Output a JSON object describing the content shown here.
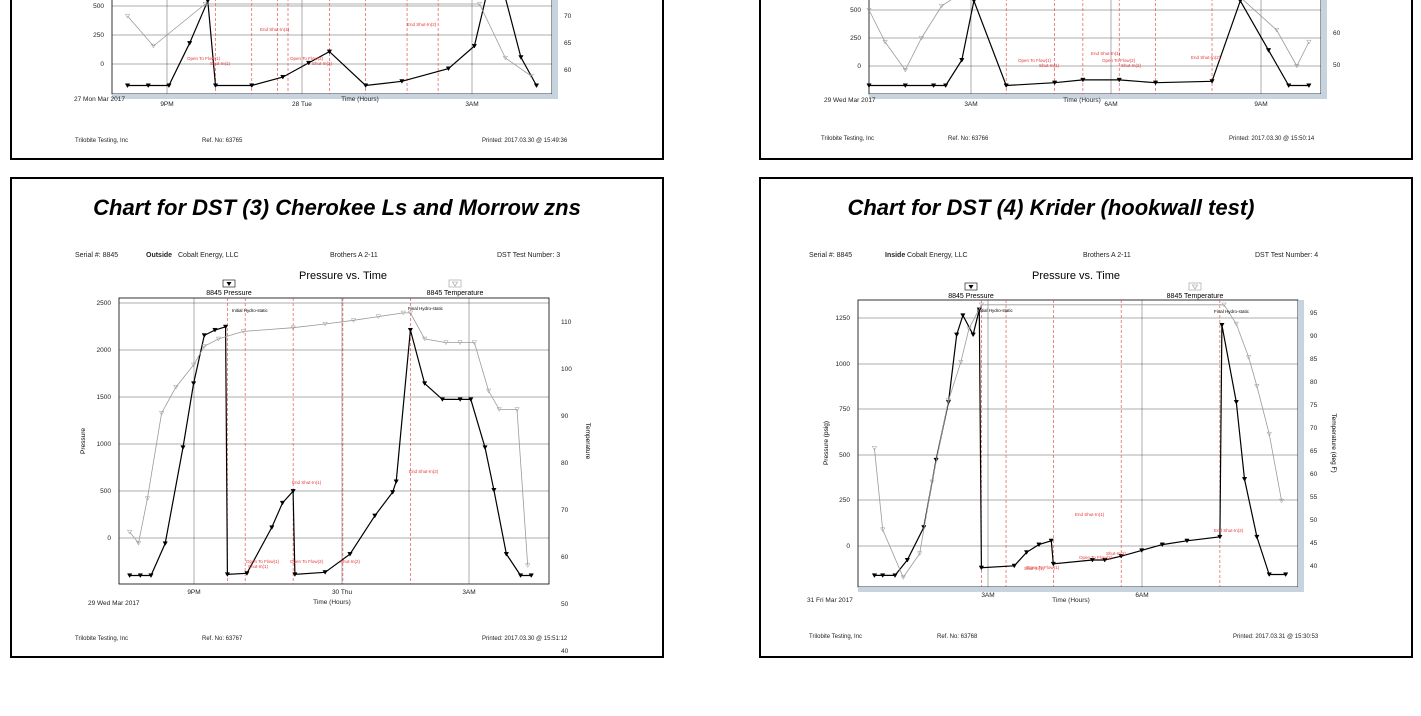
{
  "panels": [
    {
      "chart_title": "",
      "meta": {
        "serial": "",
        "location": "",
        "company": "",
        "well": "",
        "test_number": ""
      },
      "footer": {
        "company": "Trilobite Testing, Inc",
        "ref": "Ref. No:   63765",
        "printed": "Printed: 2017.03.30 @ 15:49:36"
      },
      "x_ticks": [
        "9PM",
        "28 Tue",
        "3AM"
      ],
      "date_label": "27 Mon Mar 2017",
      "x_label": "Time (Hours)",
      "y_ticks": [
        "500",
        "250",
        "0"
      ],
      "y2_ticks": [
        "70",
        "65",
        "60"
      ],
      "annotations": [
        "Open To Flow(1)",
        "Shut-In(1)",
        "End Shut-In(1)",
        "Open To Flow(2)",
        "Shut-In(2)",
        "End Shut-In(2)"
      ]
    },
    {
      "chart_title": "",
      "meta": {
        "serial": "",
        "location": "",
        "company": "",
        "well": "",
        "test_number": ""
      },
      "footer": {
        "company": "Trilobite Testing, Inc",
        "ref": "Ref. No:   63766",
        "printed": "Printed: 2017.03.30 @ 15:50:14"
      },
      "x_ticks": [
        "3AM",
        "6AM",
        "9AM"
      ],
      "date_label": "29 Wed Mar 2017",
      "x_label": "Time (Hours)",
      "y_ticks": [
        "500",
        "250",
        "0"
      ],
      "y2_ticks": [
        "60",
        "50"
      ],
      "annotations": [
        "Open To Flow(1)",
        "Shut-In(1)",
        "End Shut-In(1)",
        "Open To Flow(2)",
        "Shut-In(2)",
        "End Shut-In(2)"
      ]
    },
    {
      "chart_title": "Chart for DST (3) Cherokee Ls and Morrow zns",
      "meta": {
        "serial": "Serial #:  8845",
        "location": "Outside",
        "company": "Cobalt Energy, LLC",
        "well": "Brothers A  2-11",
        "test_number": "DST Test Number: 3"
      },
      "footer": {
        "company": "Trilobite Testing, Inc",
        "ref": "Ref. No:   63767",
        "printed": "Printed: 2017.03.30 @ 15:51:12"
      },
      "plot_title": "Pressure vs. Time",
      "legend": {
        "pressure": "8845 Pressure",
        "temperature": "8845 Temperature"
      },
      "x_ticks": [
        "9PM",
        "30 Thu",
        "3AM"
      ],
      "date_label": "29 Wed Mar 2017",
      "x_label": "Time (Hours)",
      "y_label": "Pressure",
      "y2_label": "Temperature",
      "y_ticks": [
        "2500",
        "2000",
        "1500",
        "1000",
        "500",
        "0"
      ],
      "y2_ticks": [
        "110",
        "100",
        "90",
        "80",
        "70",
        "60",
        "50",
        "40"
      ],
      "annotations": [
        "Initial Hydro-static",
        "Final Hydro-static",
        "End Shut-In(1)",
        "End Shut-In(2)",
        "Open To Flow(1)",
        "Shut-In(1)",
        "Open To Flow(2)",
        "Shut-In(2)"
      ]
    },
    {
      "chart_title": "Chart for DST (4) Krider (hookwall test)",
      "meta": {
        "serial": "Serial #:  8845",
        "location": "Inside",
        "company": "Cobalt Energy, LLC",
        "well": "Brothers A  2-11",
        "test_number": "DST Test Number: 4"
      },
      "footer": {
        "company": "Trilobite Testing, Inc",
        "ref": "Ref. No:   63768",
        "printed": "Printed: 2017.03.31 @ 15:30:53"
      },
      "plot_title": "Pressure vs. Time",
      "legend": {
        "pressure": "8845 Pressure",
        "temperature": "8845 Temperature"
      },
      "x_ticks": [
        "3AM",
        "6AM"
      ],
      "date_label": "31 Fri Mar 2017",
      "x_label": "Time (Hours)",
      "y_label": "Pressure (psig)",
      "y2_label": "Temperature (deg F)",
      "y_ticks": [
        "1250",
        "1000",
        "750",
        "500",
        "250",
        "0"
      ],
      "y2_ticks": [
        "95",
        "90",
        "85",
        "80",
        "75",
        "70",
        "65",
        "60",
        "55",
        "50",
        "45",
        "40"
      ],
      "annotations": [
        "Initial Hydro-static",
        "Final Hydro-static",
        "End Shut-In(1)",
        "End Shut-In(2)",
        "Open To Flow(1)",
        "Shut-In(1)",
        "Open To Flow(2)",
        "Shut-In(2)"
      ]
    }
  ],
  "colors": {
    "pressure": "#000000",
    "temperature": "#9a9a9a",
    "events": "#e23b3b",
    "grid": "#333333"
  },
  "chart_data": [
    {
      "type": "line",
      "x_unit": "hours",
      "series": [
        {
          "name": "",
          "axis": "pressure",
          "x": [
            0.0,
            0.4,
            0.8,
            1.2,
            1.55,
            1.7,
            2.4,
            3.0,
            3.5,
            3.9,
            4.6,
            5.3,
            6.2,
            6.7,
            7.1,
            7.6,
            7.9
          ],
          "y": [
            0,
            0,
            0,
            300,
            600,
            0,
            0,
            60,
            160,
            240,
            0,
            30,
            120,
            280,
            900,
            200,
            0
          ]
        },
        {
          "name": "",
          "axis": "temperature",
          "x": [
            0.0,
            0.5,
            1.5,
            6.8,
            7.3,
            7.8
          ],
          "y": [
            71,
            66,
            73,
            73,
            64,
            61
          ]
        }
      ],
      "xlim": [
        -0.3,
        8.2
      ],
      "ylim": [
        -60,
        620
      ],
      "y2lim": [
        58,
        74
      ],
      "events_x": [
        1.7,
        2.4,
        2.9,
        3.1,
        3.9,
        4.6,
        5.4,
        6.0
      ]
    },
    {
      "type": "line",
      "x_unit": "hours",
      "series": [
        {
          "name": "",
          "axis": "pressure",
          "x": [
            0.0,
            0.9,
            1.6,
            1.9,
            2.3,
            2.6,
            3.4,
            4.6,
            5.3,
            6.2,
            7.1,
            8.5,
            9.2,
            9.9,
            10.4,
            10.9
          ],
          "y": [
            0,
            0,
            0,
            0,
            180,
            600,
            0,
            20,
            40,
            40,
            20,
            30,
            600,
            250,
            0,
            0
          ]
        },
        {
          "name": "",
          "axis": "temperature",
          "x": [
            0.0,
            0.4,
            0.9,
            1.3,
            1.8,
            2.4,
            9.0,
            10.1,
            10.6,
            10.9
          ],
          "y": [
            65,
            57,
            50,
            58,
            66,
            70,
            70,
            60,
            51,
            57
          ]
        }
      ],
      "xlim": [
        0.0,
        11.2
      ],
      "ylim": [
        -60,
        620
      ],
      "y2lim": [
        44,
        68
      ],
      "events_x": [
        3.4,
        4.6,
        5.3,
        6.2,
        7.1,
        8.5
      ]
    },
    {
      "type": "line",
      "title": "Pressure vs. Time",
      "xlabel": "Time (Hours)",
      "ylabel": "Pressure",
      "y2label": "Temperature",
      "x_unit": "hours",
      "series": [
        {
          "name": "8845 Pressure",
          "axis": "pressure",
          "x": [
            0.0,
            0.3,
            0.6,
            1.0,
            1.5,
            1.8,
            2.1,
            2.4,
            2.7,
            2.75,
            3.3,
            4.0,
            4.3,
            4.6,
            4.65,
            5.5,
            6.2,
            6.9,
            7.4,
            7.5,
            7.9,
            8.3,
            8.8,
            9.3,
            9.6,
            10.0,
            10.25,
            10.6,
            11.0,
            11.3
          ],
          "y": [
            0,
            0,
            0,
            300,
            1200,
            1800,
            2250,
            2300,
            2330,
            10,
            20,
            450,
            680,
            790,
            10,
            30,
            200,
            560,
            780,
            880,
            2300,
            1800,
            1650,
            1650,
            1650,
            1200,
            800,
            200,
            0,
            0
          ]
        },
        {
          "name": "8845 Temperature",
          "axis": "temperature",
          "x": [
            0.0,
            0.25,
            0.5,
            0.9,
            1.3,
            1.8,
            2.1,
            2.5,
            3.2,
            4.6,
            5.5,
            6.3,
            7.0,
            7.7,
            7.9,
            8.3,
            8.9,
            9.3,
            9.7,
            10.1,
            10.4,
            10.9,
            11.2
          ],
          "y": [
            52,
            49,
            61,
            84,
            91,
            97,
            102,
            104,
            106,
            107,
            108,
            109,
            110,
            111,
            111,
            104,
            103,
            103,
            103,
            90,
            85,
            85,
            43
          ]
        }
      ],
      "xlim": [
        -0.3,
        11.8
      ],
      "ylim": [
        -80,
        2600
      ],
      "y2lim": [
        38,
        115
      ],
      "events_x": [
        2.75,
        3.25,
        4.6,
        6.0,
        7.9
      ]
    },
    {
      "type": "line",
      "title": "Pressure vs. Time",
      "xlabel": "Time (Hours)",
      "ylabel": "Pressure (psig)",
      "y2label": "Temperature (deg F)",
      "x_unit": "hours",
      "series": [
        {
          "name": "8845 Pressure",
          "axis": "pressure",
          "x": [
            0.0,
            0.2,
            0.5,
            0.8,
            1.2,
            1.5,
            1.8,
            2.0,
            2.15,
            2.4,
            2.55,
            2.6,
            3.4,
            3.7,
            4.0,
            4.3,
            4.35,
            5.3,
            5.6,
            6.0,
            6.5,
            7.0,
            7.6,
            8.4,
            8.45,
            8.8,
            9.0,
            9.3,
            9.6,
            10.0
          ],
          "y": [
            0,
            0,
            0,
            80,
            250,
            600,
            900,
            1250,
            1350,
            1250,
            1380,
            40,
            50,
            120,
            160,
            180,
            60,
            80,
            80,
            100,
            130,
            160,
            180,
            200,
            1300,
            900,
            500,
            200,
            5,
            5
          ]
        },
        {
          "name": "8845 Temperature",
          "axis": "temperature",
          "x": [
            0.0,
            0.2,
            0.7,
            1.1,
            1.4,
            1.8,
            2.1,
            2.3,
            2.6,
            8.5,
            8.8,
            9.1,
            9.3,
            9.6,
            9.9
          ],
          "y": [
            67,
            50,
            40,
            45,
            60,
            77,
            85,
            92,
            97,
            97,
            93,
            86,
            80,
            70,
            56
          ]
        }
      ],
      "xlim": [
        -0.4,
        10.3
      ],
      "ylim": [
        -60,
        1430
      ],
      "y2lim": [
        38,
        98
      ],
      "events_x": [
        2.6,
        3.2,
        4.35,
        6.0,
        8.4
      ]
    }
  ]
}
